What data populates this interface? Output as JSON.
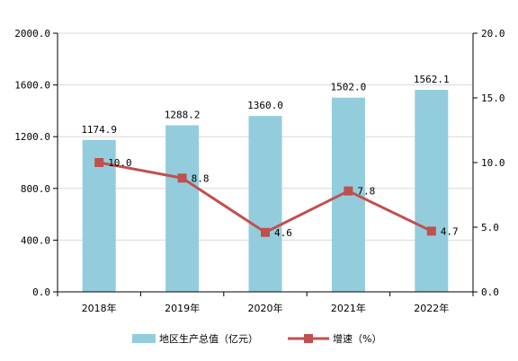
{
  "chart_data": {
    "type": "bar+line",
    "categories": [
      "2018年",
      "2019年",
      "2020年",
      "2021年",
      "2022年"
    ],
    "series": [
      {
        "name": "地区生产总值（亿元）",
        "type": "bar",
        "axis": "left",
        "values": [
          1174.9,
          1288.2,
          1360.0,
          1502.0,
          1562.1
        ],
        "labels": [
          "1174.9",
          "1288.2",
          "1360.0",
          "1502.0",
          "1562.1"
        ],
        "color": "#93cddd"
      },
      {
        "name": "增速（%）",
        "type": "line",
        "axis": "right",
        "values": [
          10.0,
          8.8,
          4.6,
          7.8,
          4.7
        ],
        "labels": [
          "10.0",
          "8.8",
          "4.6",
          "7.8",
          "4.7"
        ],
        "color": "#c0504d"
      }
    ],
    "y_left": {
      "min": 0,
      "max": 2000,
      "ticks": [
        0,
        400,
        800,
        1200,
        1600,
        2000
      ],
      "tick_labels": [
        "0.0",
        "400.0",
        "800.0",
        "1200.0",
        "1600.0",
        "2000.0"
      ]
    },
    "y_right": {
      "min": 0,
      "max": 20,
      "ticks": [
        0,
        5,
        10,
        15,
        20
      ],
      "tick_labels": [
        "0.0",
        "5.0",
        "10.0",
        "15.0",
        "20.0"
      ]
    },
    "grid": true,
    "legend_position": "bottom"
  }
}
